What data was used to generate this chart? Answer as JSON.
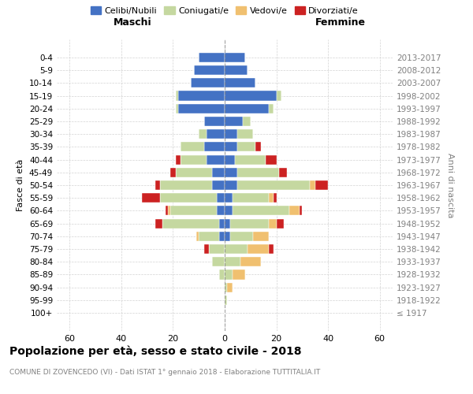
{
  "age_groups": [
    "100+",
    "95-99",
    "90-94",
    "85-89",
    "80-84",
    "75-79",
    "70-74",
    "65-69",
    "60-64",
    "55-59",
    "50-54",
    "45-49",
    "40-44",
    "35-39",
    "30-34",
    "25-29",
    "20-24",
    "15-19",
    "10-14",
    "5-9",
    "0-4"
  ],
  "birth_years": [
    "≤ 1917",
    "1918-1922",
    "1923-1927",
    "1928-1932",
    "1933-1937",
    "1938-1942",
    "1943-1947",
    "1948-1952",
    "1953-1957",
    "1958-1962",
    "1963-1967",
    "1968-1972",
    "1973-1977",
    "1978-1982",
    "1983-1987",
    "1988-1992",
    "1993-1997",
    "1998-2002",
    "2003-2007",
    "2008-2012",
    "2013-2017"
  ],
  "colors": {
    "celibi": "#4472c4",
    "coniugati": "#c5d8a0",
    "vedovi": "#f0c070",
    "divorziati": "#cc2222"
  },
  "males": {
    "celibi": [
      0,
      0,
      0,
      0,
      0,
      0,
      2,
      2,
      3,
      3,
      5,
      5,
      7,
      8,
      7,
      8,
      18,
      18,
      13,
      12,
      10
    ],
    "coniugati": [
      0,
      0,
      0,
      2,
      5,
      6,
      8,
      22,
      18,
      22,
      20,
      14,
      10,
      9,
      3,
      0,
      1,
      1,
      0,
      0,
      0
    ],
    "vedovi": [
      0,
      0,
      0,
      0,
      0,
      0,
      1,
      0,
      1,
      0,
      0,
      0,
      0,
      0,
      0,
      0,
      0,
      0,
      0,
      0,
      0
    ],
    "divorziati": [
      0,
      0,
      0,
      0,
      0,
      2,
      0,
      3,
      1,
      7,
      2,
      2,
      2,
      0,
      0,
      0,
      0,
      0,
      0,
      0,
      0
    ]
  },
  "females": {
    "nubili": [
      0,
      0,
      0,
      0,
      0,
      0,
      2,
      2,
      3,
      3,
      5,
      5,
      4,
      5,
      5,
      7,
      17,
      20,
      12,
      9,
      8
    ],
    "coniugate": [
      0,
      1,
      1,
      3,
      6,
      9,
      9,
      15,
      22,
      14,
      28,
      16,
      12,
      7,
      6,
      3,
      2,
      2,
      0,
      0,
      0
    ],
    "vedove": [
      0,
      0,
      2,
      5,
      8,
      8,
      6,
      3,
      4,
      2,
      2,
      0,
      0,
      0,
      0,
      0,
      0,
      0,
      0,
      0,
      0
    ],
    "divorziate": [
      0,
      0,
      0,
      0,
      0,
      2,
      0,
      3,
      1,
      1,
      5,
      3,
      4,
      2,
      0,
      0,
      0,
      0,
      0,
      0,
      0
    ]
  },
  "xlim": 65,
  "title": "Popolazione per età, sesso e stato civile - 2018",
  "subtitle": "COMUNE DI ZOVENCEDO (VI) - Dati ISTAT 1° gennaio 2018 - Elaborazione TUTTITALIA.IT",
  "ylabel_left": "Fasce di età",
  "ylabel_right": "Anni di nascita",
  "maschi_label": "Maschi",
  "femmine_label": "Femmine",
  "legend_labels": [
    "Celibi/Nubili",
    "Coniugati/e",
    "Vedovi/e",
    "Divorziati/e"
  ]
}
